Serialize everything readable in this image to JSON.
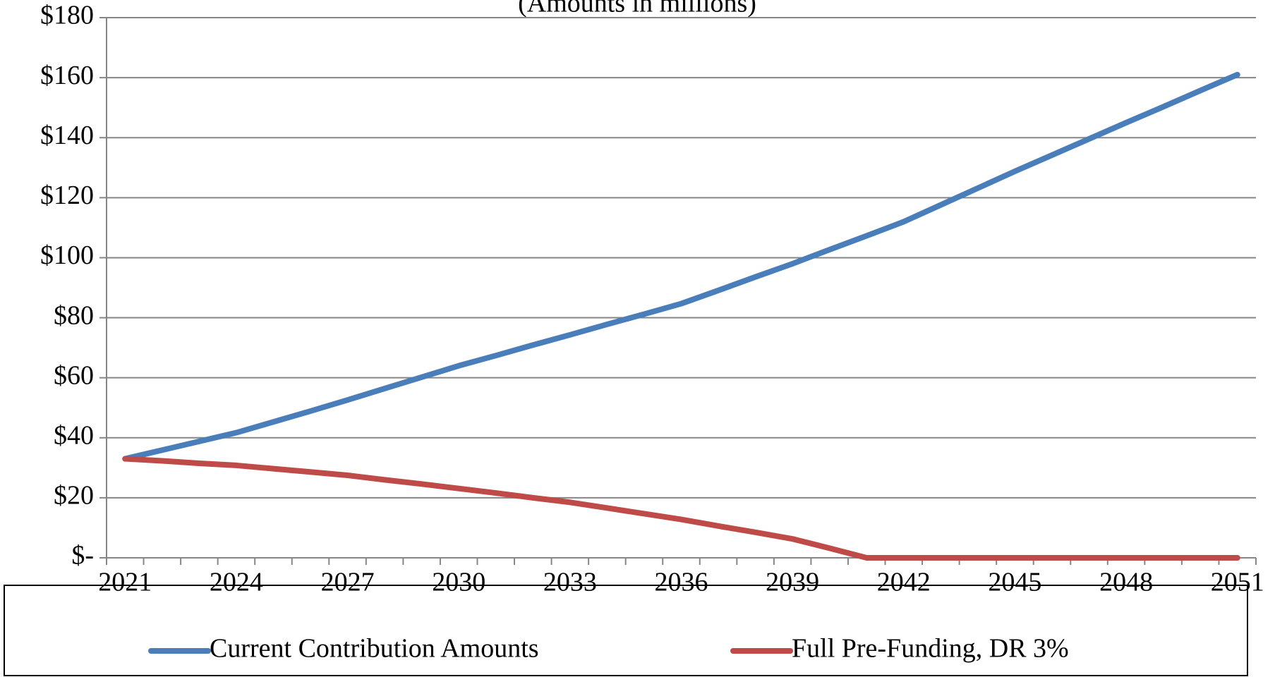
{
  "chart_data": {
    "type": "line",
    "subtitle": "(Amounts in millions)",
    "categories": [
      "2021",
      null,
      null,
      "2024",
      null,
      null,
      "2027",
      null,
      null,
      "2030",
      null,
      null,
      "2033",
      null,
      null,
      "2036",
      null,
      null,
      "2039",
      null,
      null,
      "2042",
      null,
      null,
      "2045",
      null,
      null,
      "2048",
      null,
      null,
      "2051"
    ],
    "series": [
      {
        "name": "Current Contribution Amounts",
        "color": "#4a7ebb",
        "values": [
          33,
          35.9,
          38.8,
          41.7,
          45.3,
          48.9,
          52.6,
          56.4,
          60.2,
          64,
          67.4,
          70.9,
          74.3,
          77.8,
          81.2,
          84.7,
          89.1,
          93.6,
          98,
          102.7,
          107.3,
          112,
          117.6,
          123.2,
          128.8,
          134.2,
          139.6,
          145,
          150.3,
          155.7,
          161
        ]
      },
      {
        "name": "Full Pre-Funding, DR 3%",
        "color": "#be4b48",
        "values": [
          33,
          32.3,
          31.5,
          30.8,
          29.7,
          28.6,
          27.5,
          26,
          24.6,
          23.1,
          21.6,
          20,
          18.5,
          16.6,
          14.7,
          12.8,
          10.6,
          8.5,
          6.3,
          3.2,
          0,
          0,
          0,
          0,
          0,
          0,
          0,
          0,
          0,
          0,
          0
        ]
      }
    ],
    "ylim": [
      0,
      180
    ],
    "yticks": [
      {
        "value": 0,
        "label": "$-"
      },
      {
        "value": 20,
        "label": "$20"
      },
      {
        "value": 40,
        "label": "$40"
      },
      {
        "value": 60,
        "label": "$60"
      },
      {
        "value": 80,
        "label": "$80"
      },
      {
        "value": 100,
        "label": "$100"
      },
      {
        "value": 120,
        "label": "$120"
      },
      {
        "value": 140,
        "label": "$140"
      },
      {
        "value": 160,
        "label": "$160"
      },
      {
        "value": 180,
        "label": "$180"
      }
    ],
    "grid": true,
    "legend": "bottom"
  }
}
